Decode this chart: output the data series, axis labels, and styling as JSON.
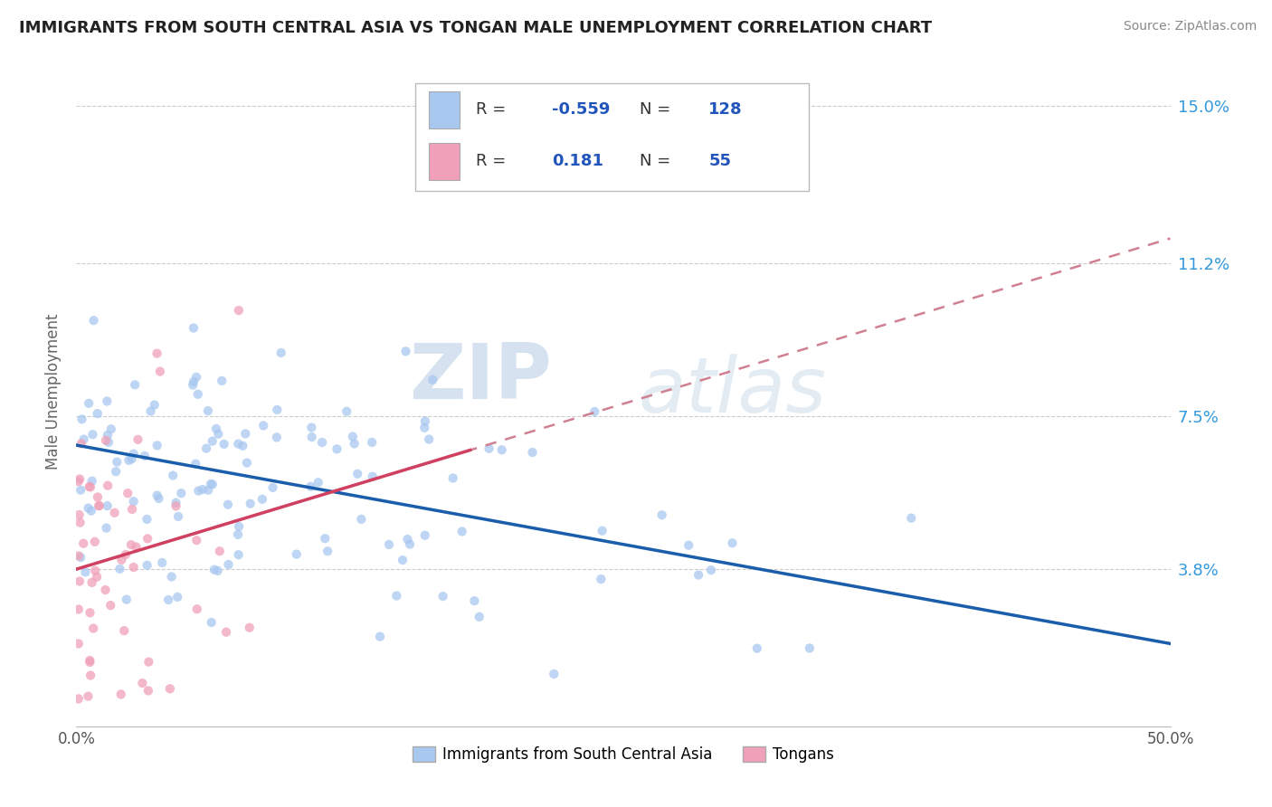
{
  "title": "IMMIGRANTS FROM SOUTH CENTRAL ASIA VS TONGAN MALE UNEMPLOYMENT CORRELATION CHART",
  "source": "Source: ZipAtlas.com",
  "ylabel": "Male Unemployment",
  "xlim": [
    0.0,
    0.5
  ],
  "ylim": [
    0.0,
    0.162
  ],
  "yticks": [
    0.038,
    0.075,
    0.112,
    0.15
  ],
  "ytick_labels": [
    "3.8%",
    "7.5%",
    "11.2%",
    "15.0%"
  ],
  "xtick_positions": [
    0.0,
    0.5
  ],
  "xtick_labels": [
    "0.0%",
    "50.0%"
  ],
  "blue_color": "#A8C8F0",
  "pink_color": "#F0A0B8",
  "blue_line_color": "#1A5DAB",
  "pink_line_color": "#D04060",
  "pink_dash_color": "#D08090",
  "R_blue": -0.559,
  "N_blue": 128,
  "R_pink": 0.181,
  "N_pink": 55,
  "watermark_zip": "ZIP",
  "watermark_atlas": "atlas",
  "watermark_color": "#C8D8EC",
  "background_color": "#FFFFFF",
  "legend_label_blue": "Immigrants from South Central Asia",
  "legend_label_pink": "Tongans",
  "grid_color": "#CCCCCC",
  "seed_blue": 7,
  "seed_pink": 13,
  "blue_line_x0": 0.0,
  "blue_line_x1": 0.5,
  "blue_line_y0": 0.068,
  "blue_line_y1": 0.02,
  "pink_line_x0": 0.0,
  "pink_line_x1": 0.5,
  "pink_line_y0": 0.038,
  "pink_line_y1": 0.118
}
